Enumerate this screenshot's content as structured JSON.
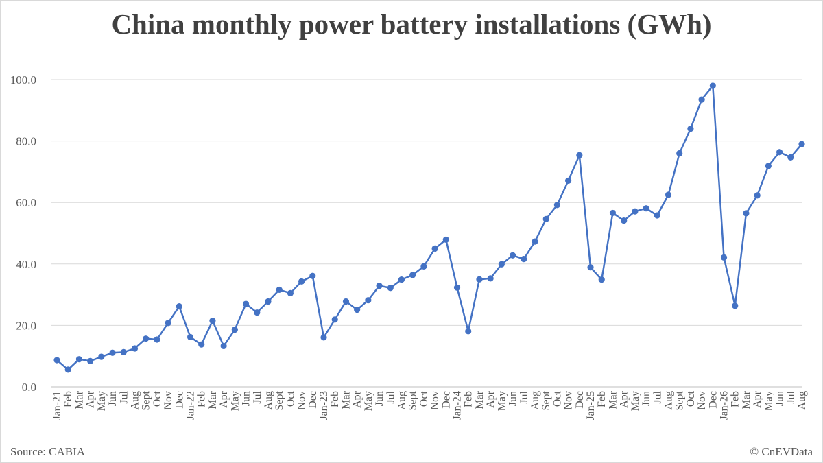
{
  "chart_data": {
    "type": "line",
    "title": "China monthly power battery installations (GWh)",
    "xlabel": "",
    "ylabel": "",
    "ylim": [
      0,
      100
    ],
    "yticks": [
      "0.0",
      "20.0",
      "40.0",
      "60.0",
      "80.0",
      "100.0"
    ],
    "grid": true,
    "legend": "none",
    "colors": {
      "line": "#4472c4",
      "grid": "#d9d9d9",
      "axis": "#bfbfbf",
      "text": "#595959"
    },
    "categories": [
      "Jan-21",
      "Feb",
      "Mar",
      "Apr",
      "May",
      "Jun",
      "Jul",
      "Aug",
      "Sept",
      "Oct",
      "Nov",
      "Dec",
      "Jan-22",
      "Feb",
      "Mar",
      "Apr",
      "May",
      "Jun",
      "Jul",
      "Aug",
      "Sept",
      "Oct",
      "Nov",
      "Dec",
      "Jan-23",
      "Feb",
      "Mar",
      "Apr",
      "May",
      "Jun",
      "Jul",
      "Aug",
      "Sept",
      "Oct",
      "Nov",
      "Dec",
      "Jan-24",
      "Feb",
      "Mar",
      "Apr",
      "May",
      "Jun",
      "Jul",
      "Aug",
      "Sept",
      "Oct",
      "Nov",
      "Dec",
      "Jan-25",
      "Feb",
      "Mar",
      "Apr",
      "May",
      "Jun",
      "Jul",
      "Aug",
      "Sept",
      "Oct",
      "Nov",
      "Dec",
      "Jan-26",
      "Feb",
      "Mar",
      "Apr",
      "May",
      "Jun",
      "Jul",
      "Aug"
    ],
    "series": [
      {
        "values": [
          8.7,
          5.6,
          9.0,
          8.4,
          9.8,
          11.1,
          11.3,
          12.5,
          15.7,
          15.4,
          20.8,
          26.2,
          16.2,
          13.8,
          21.5,
          13.3,
          18.6,
          27.0,
          24.2,
          27.8,
          31.6,
          30.5,
          34.3,
          36.1,
          16.1,
          21.9,
          27.8,
          25.1,
          28.2,
          32.9,
          32.2,
          34.9,
          36.4,
          39.2,
          45.0,
          47.9,
          32.3,
          18.1,
          35.0,
          35.3,
          39.9,
          42.8,
          41.6,
          47.3,
          54.6,
          59.2,
          67.1,
          75.4,
          38.9,
          34.9,
          56.6,
          54.1,
          57.1,
          58.1,
          55.8,
          62.5,
          76.0,
          84.0,
          93.5,
          98.0,
          42.1,
          26.4,
          56.5,
          62.3,
          71.9,
          76.4,
          74.7,
          79.0
        ]
      }
    ]
  },
  "footer": {
    "source": "Source: CABIA",
    "credit": "© CnEVData"
  }
}
